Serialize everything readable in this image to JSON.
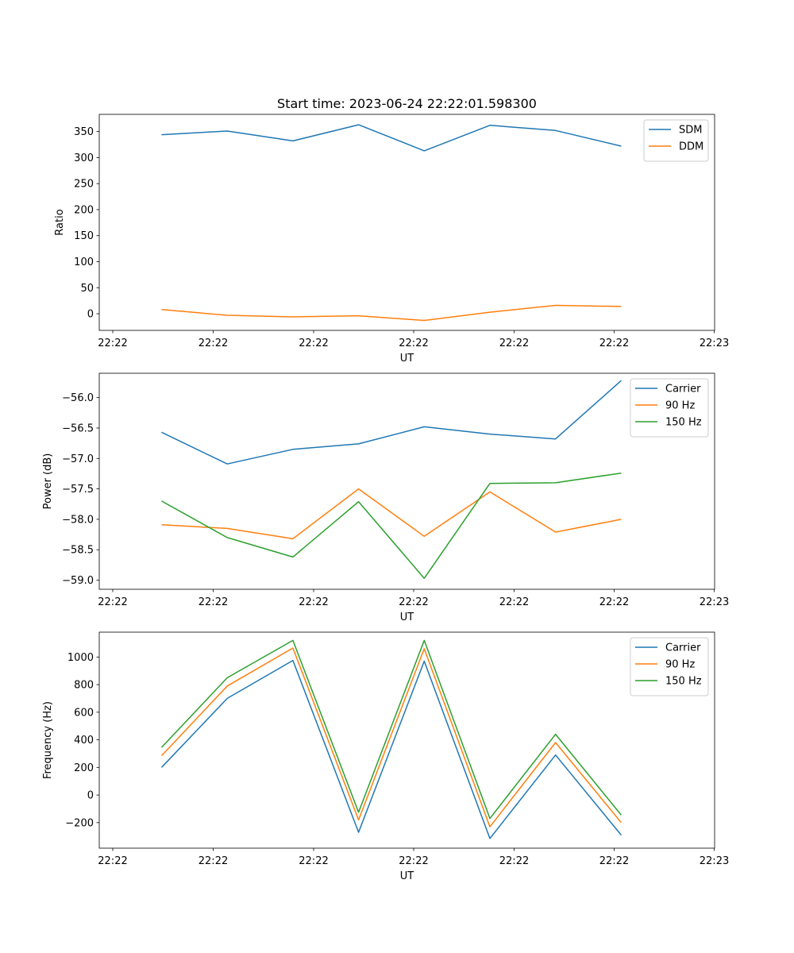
{
  "figure": {
    "title": "Start time: 2023-06-24 22:22:01.598300"
  },
  "chart_data": [
    {
      "type": "line",
      "ylabel": "Ratio",
      "xlabel": "UT",
      "ylim": [
        -32,
        383
      ],
      "yticks": [
        0,
        50,
        100,
        150,
        200,
        250,
        300,
        350
      ],
      "xticks": [
        "22:22",
        "22:22",
        "22:22",
        "22:22",
        "22:22",
        "22:22",
        "22:22"
      ],
      "xticks_right": "22:23",
      "legend_position": "top-right",
      "x": [
        1,
        2,
        3,
        4,
        5,
        6,
        7,
        8
      ],
      "series": [
        {
          "name": "SDM",
          "color": "#1f77b4",
          "values": [
            344,
            351,
            332,
            363,
            313,
            362,
            352,
            322
          ]
        },
        {
          "name": "DDM",
          "color": "#ff7f0e",
          "values": [
            8,
            -3,
            -6,
            -4,
            -13,
            3,
            16,
            14
          ]
        }
      ]
    },
    {
      "type": "line",
      "ylabel": "Power (dB)",
      "xlabel": "UT",
      "ylim": [
        -59.15,
        -55.6
      ],
      "yticks": [
        -59.0,
        -58.5,
        -58.0,
        -57.5,
        -57.0,
        -56.5,
        -56.0
      ],
      "xticks": [
        "22:22",
        "22:22",
        "22:22",
        "22:22",
        "22:22",
        "22:22",
        "22:22"
      ],
      "xticks_right": "22:23",
      "legend_position": "top-right",
      "x": [
        1,
        2,
        3,
        4,
        5,
        6,
        7,
        8
      ],
      "series": [
        {
          "name": "Carrier",
          "color": "#1f77b4",
          "values": [
            -56.57,
            -57.09,
            -56.85,
            -56.76,
            -56.48,
            -56.6,
            -56.68,
            -55.72
          ]
        },
        {
          "name": "90 Hz",
          "color": "#ff7f0e",
          "values": [
            -58.09,
            -58.15,
            -58.32,
            -57.5,
            -58.28,
            -57.55,
            -58.21,
            -58.0
          ]
        },
        {
          "name": "150 Hz",
          "color": "#2ca02c",
          "values": [
            -57.7,
            -58.3,
            -58.62,
            -57.71,
            -58.97,
            -57.41,
            -57.4,
            -57.24
          ]
        }
      ]
    },
    {
      "type": "line",
      "ylabel": "Frequency (Hz)",
      "xlabel": "UT",
      "ylim": [
        -385,
        1180
      ],
      "yticks": [
        -200,
        0,
        200,
        400,
        600,
        800,
        1000
      ],
      "xticks": [
        "22:22",
        "22:22",
        "22:22",
        "22:22",
        "22:22",
        "22:22",
        "22:22"
      ],
      "xticks_right": "22:23",
      "legend_position": "top-right",
      "x": [
        1,
        2,
        3,
        4,
        5,
        6,
        7,
        8
      ],
      "series": [
        {
          "name": "Carrier",
          "color": "#1f77b4",
          "values": [
            200,
            700,
            975,
            -270,
            970,
            -315,
            290,
            -290
          ]
        },
        {
          "name": "90 Hz",
          "color": "#ff7f0e",
          "values": [
            285,
            790,
            1065,
            -180,
            1060,
            -230,
            380,
            -200
          ]
        },
        {
          "name": "150 Hz",
          "color": "#2ca02c",
          "values": [
            345,
            850,
            1120,
            -125,
            1120,
            -170,
            440,
            -145
          ]
        }
      ]
    }
  ]
}
